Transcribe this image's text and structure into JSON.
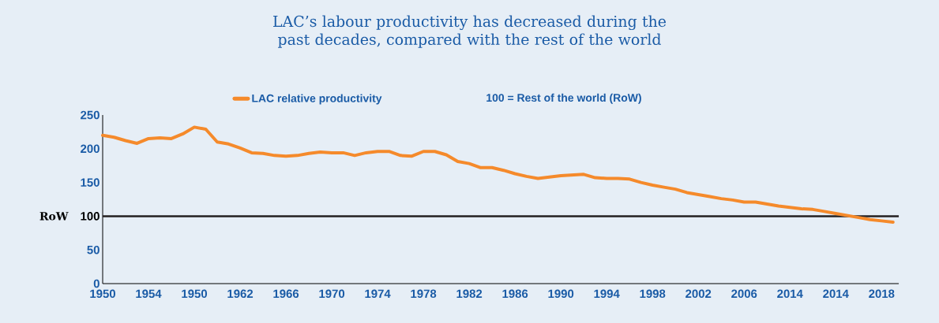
{
  "chart_data": {
    "type": "line",
    "title": "LAC’s labour productivity has decreased during the past decades, compared with the rest of the world",
    "categories": [
      "1950",
      null,
      null,
      null,
      "1954",
      null,
      null,
      null,
      "1950",
      null,
      null,
      null,
      "1962",
      null,
      null,
      null,
      "1966",
      null,
      null,
      null,
      "1970",
      null,
      null,
      null,
      "1974",
      null,
      null,
      null,
      "1978",
      null,
      null,
      null,
      "1982",
      null,
      null,
      null,
      "1986",
      null,
      null,
      null,
      "1990",
      null,
      null,
      null,
      "1994",
      null,
      null,
      null,
      "1998",
      null,
      null,
      null,
      "2002",
      null,
      null,
      null,
      "2006",
      null,
      null,
      null,
      "2014",
      null,
      null,
      null,
      "2014",
      null,
      null,
      null,
      "2018",
      null
    ],
    "series": [
      {
        "name": "LAC relative productivity",
        "color": "#f58a2b",
        "values": [
          220,
          217,
          212,
          208,
          215,
          216,
          215,
          222,
          232,
          229,
          210,
          207,
          201,
          194,
          193,
          190,
          189,
          190,
          193,
          195,
          194,
          194,
          190,
          194,
          196,
          196,
          190,
          189,
          196,
          196,
          191,
          181,
          178,
          172,
          172,
          168,
          163,
          159,
          156,
          158,
          160,
          161,
          162,
          157,
          156,
          156,
          155,
          150,
          146,
          143,
          140,
          135,
          132,
          129,
          126,
          124,
          121,
          121,
          118,
          115,
          113,
          111,
          110,
          107,
          104,
          101,
          98,
          95,
          93,
          91
        ]
      }
    ],
    "ylim": [
      0,
      250
    ],
    "yticks": [
      0,
      50,
      100,
      150,
      200,
      250
    ],
    "ref_lines": [
      {
        "axis": "y",
        "value": 100,
        "label": "RoW",
        "color": "#231f20"
      }
    ],
    "annotations": [
      "100 = Rest of the world (RoW)"
    ],
    "legend": "top",
    "grid": false,
    "marker": "none",
    "line_style": "solid"
  }
}
